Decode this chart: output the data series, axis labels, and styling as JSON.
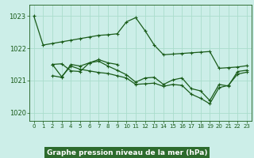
{
  "title": "Graphe pression niveau de la mer (hPa)",
  "background_color": "#cceee8",
  "label_bg_color": "#2d6b2d",
  "label_text_color": "#ffffff",
  "grid_color": "#aaddcc",
  "line_color": "#1a5c1a",
  "xlim": [
    -0.5,
    23.5
  ],
  "ylim": [
    1019.75,
    1023.35
  ],
  "yticks": [
    1020,
    1021,
    1022,
    1023
  ],
  "xticks": [
    0,
    1,
    2,
    3,
    4,
    5,
    6,
    7,
    8,
    9,
    10,
    11,
    12,
    13,
    14,
    15,
    16,
    17,
    18,
    19,
    20,
    21,
    22,
    23
  ],
  "line1_x": [
    0,
    1,
    2,
    3,
    4,
    5,
    6,
    7,
    8,
    9,
    10,
    11,
    12,
    13,
    14,
    15,
    16,
    17,
    18,
    19,
    20,
    21,
    22,
    23
  ],
  "line1_y": [
    1023.0,
    1022.1,
    1022.15,
    1022.2,
    1022.25,
    1022.3,
    1022.35,
    1022.4,
    1022.42,
    1022.45,
    1022.82,
    1022.95,
    1022.55,
    1022.1,
    1021.8,
    1021.82,
    1021.84,
    1021.86,
    1021.88,
    1021.9,
    1021.38,
    1021.4,
    1021.42,
    1021.46
  ],
  "line2_x": [
    2,
    3,
    4,
    5,
    6,
    7,
    8,
    9
  ],
  "line2_y": [
    1021.5,
    1021.52,
    1021.3,
    1021.28,
    1021.55,
    1021.65,
    1021.55,
    1021.5
  ],
  "line3_x": [
    2,
    3,
    4,
    5,
    6,
    7,
    8,
    9,
    10,
    11,
    12,
    13,
    14,
    15,
    16,
    17,
    18,
    19,
    20,
    21,
    22,
    23
  ],
  "line3_y": [
    1021.15,
    1021.1,
    1021.5,
    1021.45,
    1021.55,
    1021.6,
    1021.45,
    1021.32,
    1021.18,
    1020.95,
    1021.08,
    1021.1,
    1020.88,
    1021.02,
    1021.08,
    1020.75,
    1020.68,
    1020.38,
    1020.88,
    1020.83,
    1021.28,
    1021.32
  ],
  "line4_x": [
    2,
    3,
    4,
    5,
    6,
    7,
    8,
    9,
    10,
    11,
    12,
    13,
    14,
    15,
    16,
    17,
    18,
    19,
    20,
    21,
    22,
    23
  ],
  "line4_y": [
    1021.5,
    1021.12,
    1021.45,
    1021.35,
    1021.3,
    1021.25,
    1021.22,
    1021.15,
    1021.08,
    1020.88,
    1020.9,
    1020.92,
    1020.82,
    1020.88,
    1020.85,
    1020.58,
    1020.45,
    1020.28,
    1020.78,
    1020.85,
    1021.2,
    1021.26
  ]
}
